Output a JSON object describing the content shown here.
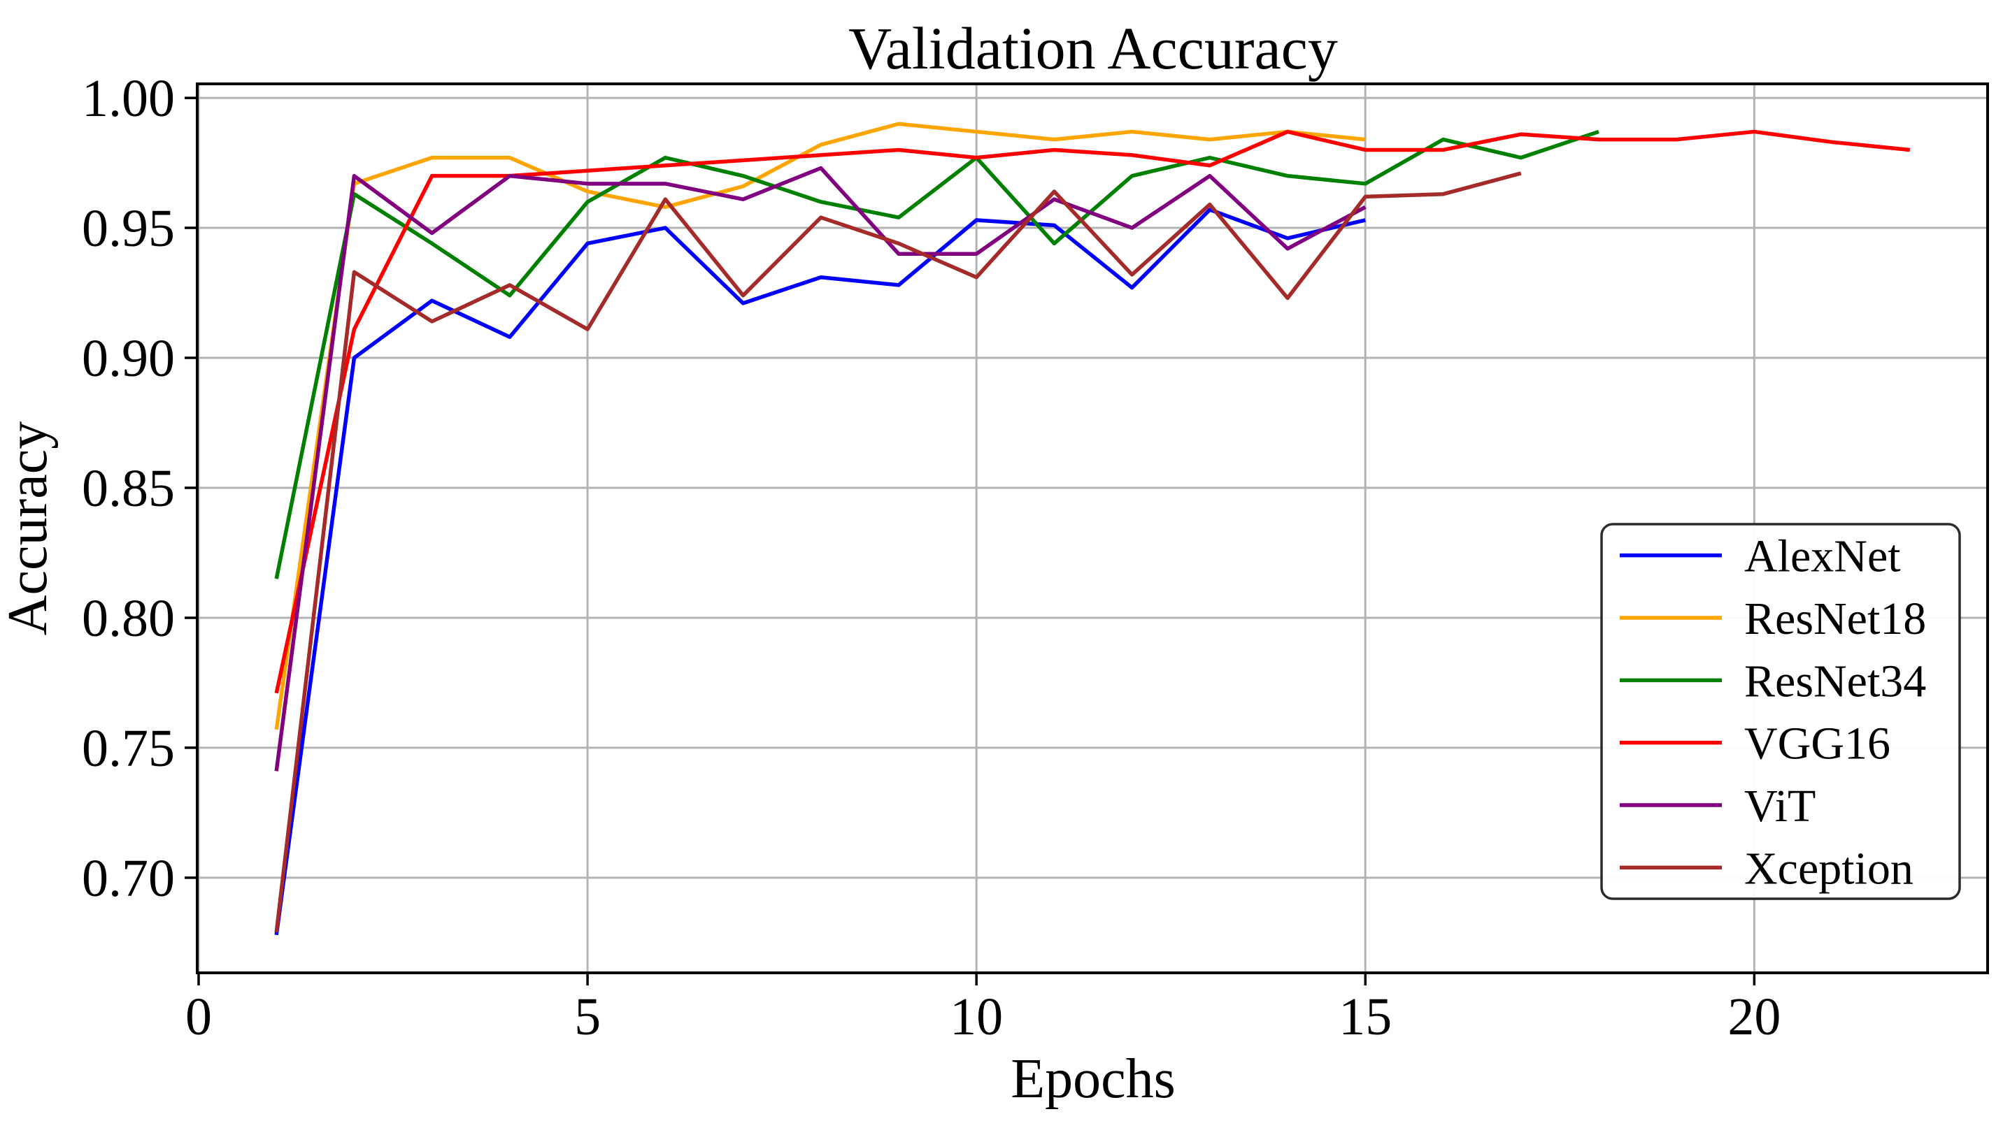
{
  "page": {
    "title": "Validation Accuracy"
  },
  "chart_data": {
    "type": "line",
    "title": "Validation Accuracy",
    "xlabel": "Epochs",
    "ylabel": "Accuracy",
    "xlim": [
      0,
      23.0
    ],
    "ylim": [
      0.6634,
      1.0054
    ],
    "xticks": {
      "values": [
        0,
        5,
        10,
        15,
        20
      ],
      "labels": [
        "0",
        "5",
        "10",
        "15",
        "20"
      ]
    },
    "yticks": {
      "values": [
        0.7,
        0.75,
        0.8,
        0.85,
        0.9,
        0.95,
        1.0
      ],
      "labels": [
        "0.70",
        "0.75",
        "0.80",
        "0.85",
        "0.90",
        "0.95",
        "1.00"
      ]
    },
    "grid": true,
    "grid_color": "#b3b3b3",
    "spine_color": "#000000",
    "legend": {
      "position": "lower right",
      "edge_color": "#2b2b2b",
      "face_color": "#ffffff"
    },
    "series": [
      {
        "name": "AlexNet",
        "color": "#0000FF",
        "x": [
          1,
          2,
          3,
          4,
          5,
          6,
          7,
          8,
          9,
          10,
          11,
          12,
          13,
          14,
          15
        ],
        "values": [
          0.678,
          0.9,
          0.922,
          0.908,
          0.944,
          0.95,
          0.921,
          0.931,
          0.928,
          0.953,
          0.951,
          0.927,
          0.957,
          0.946,
          0.953
        ]
      },
      {
        "name": "ResNet18",
        "color": "#FFA500",
        "x": [
          1,
          2,
          3,
          4,
          5,
          6,
          7,
          8,
          9,
          10,
          11,
          12,
          13,
          14,
          15
        ],
        "values": [
          0.757,
          0.967,
          0.977,
          0.977,
          0.964,
          0.958,
          0.966,
          0.982,
          0.99,
          0.987,
          0.984,
          0.987,
          0.984,
          0.987,
          0.984
        ]
      },
      {
        "name": "ResNet34",
        "color": "#008000",
        "x": [
          1,
          2,
          3,
          4,
          5,
          6,
          7,
          8,
          9,
          10,
          11,
          12,
          13,
          14,
          15,
          16,
          17,
          18
        ],
        "values": [
          0.815,
          0.963,
          0.944,
          0.924,
          0.96,
          0.977,
          0.97,
          0.96,
          0.954,
          0.977,
          0.944,
          0.97,
          0.977,
          0.97,
          0.967,
          0.984,
          0.977,
          0.987
        ]
      },
      {
        "name": "VGG16",
        "color": "#FF0000",
        "x": [
          1,
          2,
          3,
          4,
          5,
          6,
          7,
          8,
          9,
          10,
          11,
          12,
          13,
          14,
          15,
          16,
          17,
          18,
          19,
          20,
          21,
          22
        ],
        "values": [
          0.771,
          0.911,
          0.97,
          0.97,
          0.972,
          0.974,
          0.976,
          0.978,
          0.98,
          0.977,
          0.98,
          0.978,
          0.974,
          0.987,
          0.98,
          0.98,
          0.986,
          0.984,
          0.984,
          0.987,
          0.983,
          0.98
        ]
      },
      {
        "name": "ViT",
        "color": "#800080",
        "x": [
          1,
          2,
          3,
          4,
          5,
          6,
          7,
          8,
          9,
          10,
          11,
          12,
          13,
          14,
          15
        ],
        "values": [
          0.741,
          0.97,
          0.948,
          0.97,
          0.967,
          0.967,
          0.961,
          0.973,
          0.94,
          0.94,
          0.961,
          0.95,
          0.97,
          0.942,
          0.958
        ]
      },
      {
        "name": "Xception",
        "color": "#A52A2A",
        "x": [
          1,
          2,
          3,
          4,
          5,
          6,
          7,
          8,
          9,
          10,
          11,
          12,
          13,
          14,
          15,
          16,
          17
        ],
        "values": [
          0.679,
          0.933,
          0.914,
          0.928,
          0.911,
          0.961,
          0.924,
          0.954,
          0.944,
          0.931,
          0.964,
          0.932,
          0.959,
          0.923,
          0.962,
          0.963,
          0.971
        ]
      }
    ]
  }
}
